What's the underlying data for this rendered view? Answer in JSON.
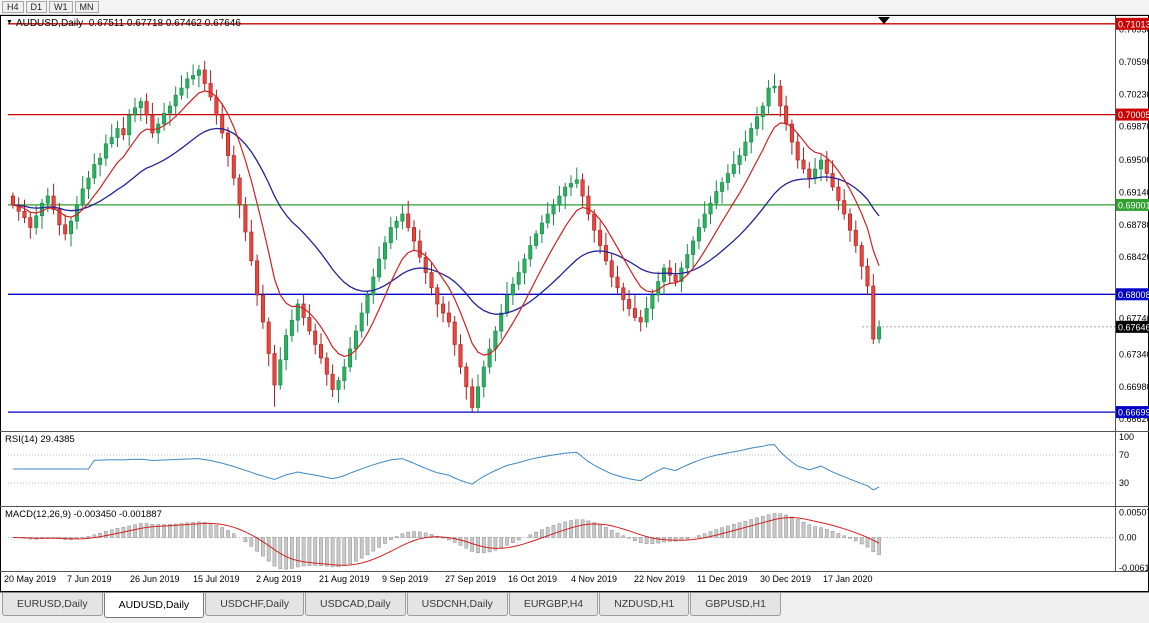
{
  "toolbar": {
    "buttons": [
      "H4",
      "D1",
      "W1",
      "MN"
    ]
  },
  "header": {
    "symbol": "AUDUSD,Daily",
    "ohlc_text": "0.67511 0.67718 0.67462 0.67646"
  },
  "chart_data": {
    "type": "candlestick",
    "symbol": "AUDUSD",
    "timeframe": "Daily",
    "ohlc_current": {
      "open": 0.67511,
      "high": 0.67718,
      "low": 0.67462,
      "close": 0.67646
    },
    "price_range": {
      "min": 0.665,
      "max": 0.711
    },
    "price_axis_ticks": [
      "0.70950",
      "0.70590",
      "0.70230",
      "0.69870",
      "0.69500",
      "0.69140",
      "0.68780",
      "0.68420",
      "0.67740",
      "0.67340",
      "0.66980",
      "0.66620"
    ],
    "x_axis_dates": [
      "20 May 2019",
      "7 Jun 2019",
      "26 Jun 2019",
      "15 Jul 2019",
      "2 Aug 2019",
      "21 Aug 2019",
      "9 Sep 2019",
      "27 Sep 2019",
      "16 Oct 2019",
      "4 Nov 2019",
      "22 Nov 2019",
      "11 Dec 2019",
      "30 Dec 2019",
      "17 Jan 2020"
    ],
    "closes": [
      0.69,
      0.6893,
      0.6886,
      0.6875,
      0.6888,
      0.6902,
      0.691,
      0.6895,
      0.6878,
      0.6868,
      0.6882,
      0.69,
      0.6918,
      0.693,
      0.6945,
      0.6952,
      0.6968,
      0.6975,
      0.6985,
      0.6978,
      0.7,
      0.7008,
      0.7015,
      0.7,
      0.698,
      0.699,
      0.7002,
      0.701,
      0.7022,
      0.703,
      0.704,
      0.7044,
      0.705,
      0.7035,
      0.702,
      0.7,
      0.698,
      0.6955,
      0.693,
      0.69,
      0.687,
      0.6838,
      0.68,
      0.677,
      0.6735,
      0.67,
      0.6728,
      0.6755,
      0.6772,
      0.679,
      0.6775,
      0.676,
      0.6745,
      0.673,
      0.6712,
      0.6695,
      0.6705,
      0.672,
      0.674,
      0.676,
      0.678,
      0.68,
      0.682,
      0.684,
      0.6858,
      0.6875,
      0.6882,
      0.689,
      0.6875,
      0.686,
      0.6842,
      0.6825,
      0.6808,
      0.679,
      0.678,
      0.677,
      0.6745,
      0.672,
      0.6698,
      0.6675,
      0.6698,
      0.672,
      0.674,
      0.676,
      0.678,
      0.68,
      0.6812,
      0.6825,
      0.684,
      0.6855,
      0.6868,
      0.688,
      0.689,
      0.69,
      0.691,
      0.692,
      0.6924,
      0.6928,
      0.691,
      0.689,
      0.6872,
      0.6855,
      0.6838,
      0.682,
      0.6808,
      0.6795,
      0.6785,
      0.6775,
      0.677,
      0.6785,
      0.68,
      0.6815,
      0.683,
      0.6822,
      0.6815,
      0.683,
      0.6845,
      0.686,
      0.6875,
      0.689,
      0.6902,
      0.6915,
      0.6925,
      0.6935,
      0.6945,
      0.6955,
      0.697,
      0.6985,
      0.6998,
      0.701,
      0.703,
      0.7032,
      0.701,
      0.699,
      0.697,
      0.695,
      0.694,
      0.693,
      0.694,
      0.695,
      0.6935,
      0.692,
      0.6905,
      0.689,
      0.6872,
      0.6855,
      0.6832,
      0.681,
      0.67511,
      0.67646
    ],
    "levels": [
      {
        "value": 0.71013,
        "label": "0.71013",
        "color": "#cc0000"
      },
      {
        "value": 0.70005,
        "label": "0.70005",
        "color": "#cc0000"
      },
      {
        "value": 0.69001,
        "label": "0.69001",
        "color": "#2fa12f"
      },
      {
        "value": 0.68008,
        "label": "0.68008",
        "color": "#0000c8"
      },
      {
        "value": 0.66699,
        "label": "0.66699",
        "color": "#0000c8"
      }
    ],
    "current_price": {
      "value": 0.67646,
      "label": "0.67646",
      "color": "#000000"
    },
    "moving_averages": [
      {
        "name": "fast",
        "period": 9,
        "color": "#d22020"
      },
      {
        "name": "slow",
        "period": 30,
        "color": "#22229a"
      }
    ],
    "candle_colors": {
      "up": "#2bb060",
      "up_edge": "#148a48",
      "down": "#e8453c",
      "down_edge": "#a81d1d"
    },
    "indicators": {
      "rsi": {
        "label": "RSI(14) 29.4385",
        "period": 14,
        "value": 29.4385,
        "axis_labels": [
          "100",
          "70",
          "30"
        ],
        "level_lines": [
          70,
          30
        ],
        "color": "#3f87c4"
      },
      "macd": {
        "label": "MACD(12,26,9) -0.003450 -0.001887",
        "fast": 12,
        "slow": 26,
        "signal_period": 9,
        "main_value": -0.00345,
        "signal_value": -0.001887,
        "axis_labels": [
          "0.005076",
          "0.00",
          "-0.006148"
        ],
        "range": {
          "min": -0.0068,
          "max": 0.0062
        },
        "histogram_color": "#c9c9c9",
        "histogram_edge": "#8f8f8f",
        "signal_color": "#d22020"
      }
    }
  },
  "tabs": [
    {
      "label": "EURUSD,Daily",
      "active": false
    },
    {
      "label": "AUDUSD,Daily",
      "active": true
    },
    {
      "label": "USDCHF,Daily",
      "active": false
    },
    {
      "label": "USDCAD,Daily",
      "active": false
    },
    {
      "label": "USDCNH,Daily",
      "active": false
    },
    {
      "label": "EURGBP,H4",
      "active": false
    },
    {
      "label": "NZDUSD,H1",
      "active": false
    },
    {
      "label": "GBPUSD,H1",
      "active": false
    }
  ]
}
